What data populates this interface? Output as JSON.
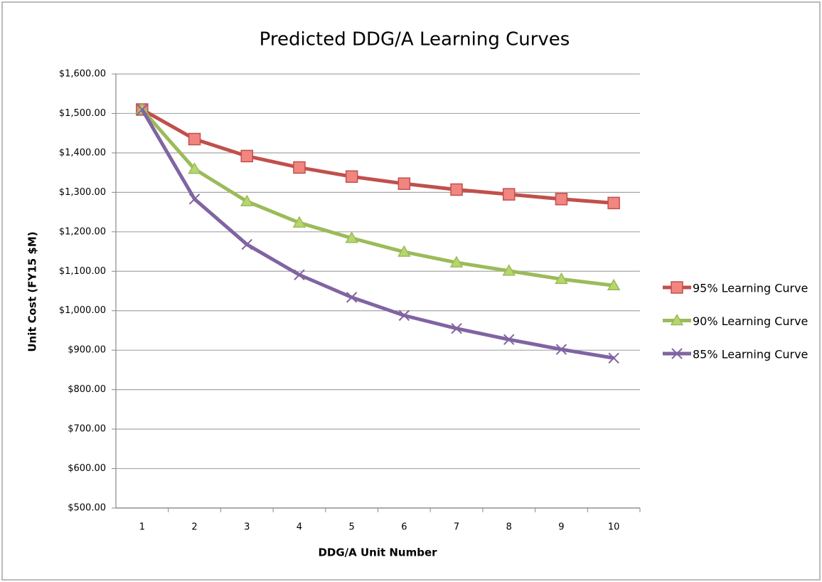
{
  "chart_data": {
    "type": "line",
    "title": "Predicted DDG/A Learning Curves",
    "x_label": "DDG/A Unit Number",
    "y_label": "Unit Cost (FY15 $M)",
    "categories": [
      "1",
      "2",
      "3",
      "4",
      "5",
      "6",
      "7",
      "8",
      "9",
      "10"
    ],
    "series": [
      {
        "name": "95% Learning Curve",
        "color": "#c0504d",
        "marker": "square",
        "values": [
          1510,
          1435,
          1392,
          1363,
          1340,
          1322,
          1307,
          1295,
          1283,
          1273
        ]
      },
      {
        "name": "90% Learning Curve",
        "color": "#9bbb59",
        "marker": "triangle",
        "values": [
          1510,
          1359,
          1277,
          1223,
          1184,
          1149,
          1122,
          1101,
          1080,
          1064
        ]
      },
      {
        "name": "85% Learning Curve",
        "color": "#8064a2",
        "marker": "x",
        "values": [
          1510,
          1283,
          1168,
          1091,
          1034,
          988,
          955,
          927,
          902,
          880
        ]
      }
    ],
    "ylim": [
      500,
      1600
    ],
    "yticks": [
      {
        "value": 500,
        "label": "$500.00"
      },
      {
        "value": 600,
        "label": "$600.00"
      },
      {
        "value": 700,
        "label": "$700.00"
      },
      {
        "value": 800,
        "label": "$800.00"
      },
      {
        "value": 900,
        "label": "$900.00"
      },
      {
        "value": 1000,
        "label": "$1,000.00"
      },
      {
        "value": 1100,
        "label": "$1,100.00"
      },
      {
        "value": 1200,
        "label": "$1,200.00"
      },
      {
        "value": 1300,
        "label": "$1,300.00"
      },
      {
        "value": 1400,
        "label": "$1,400.00"
      },
      {
        "value": 1500,
        "label": "$1,500.00"
      },
      {
        "value": 1600,
        "label": "$1,600.00"
      }
    ],
    "grid": true,
    "legend": "right"
  }
}
